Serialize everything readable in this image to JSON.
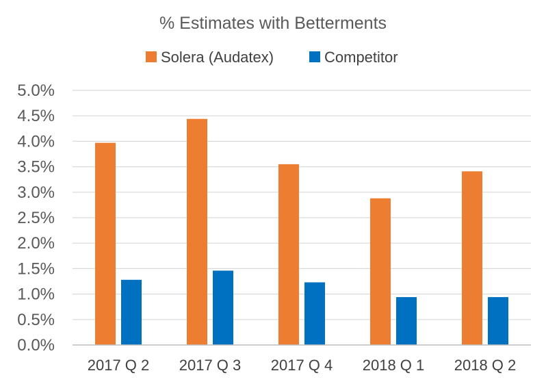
{
  "chart_data": {
    "type": "bar",
    "title": "% Estimates with Betterments",
    "xlabel": "",
    "ylabel": "",
    "categories": [
      "2017 Q 2",
      "2017 Q 3",
      "2017 Q 4",
      "2018 Q 1",
      "2018 Q 2"
    ],
    "series": [
      {
        "name": "Solera (Audatex)",
        "color": "#ED7D31",
        "values": [
          3.97,
          4.44,
          3.55,
          2.88,
          3.41
        ]
      },
      {
        "name": "Competitor",
        "color": "#0070C0",
        "values": [
          1.28,
          1.46,
          1.23,
          0.94,
          0.94
        ]
      }
    ],
    "ylim": [
      0,
      5.0
    ],
    "yticks": [
      "0.0%",
      "0.5%",
      "1.0%",
      "1.5%",
      "2.0%",
      "2.5%",
      "3.0%",
      "3.5%",
      "4.0%",
      "4.5%",
      "5.0%"
    ],
    "grid": true,
    "legend_position": "top"
  }
}
